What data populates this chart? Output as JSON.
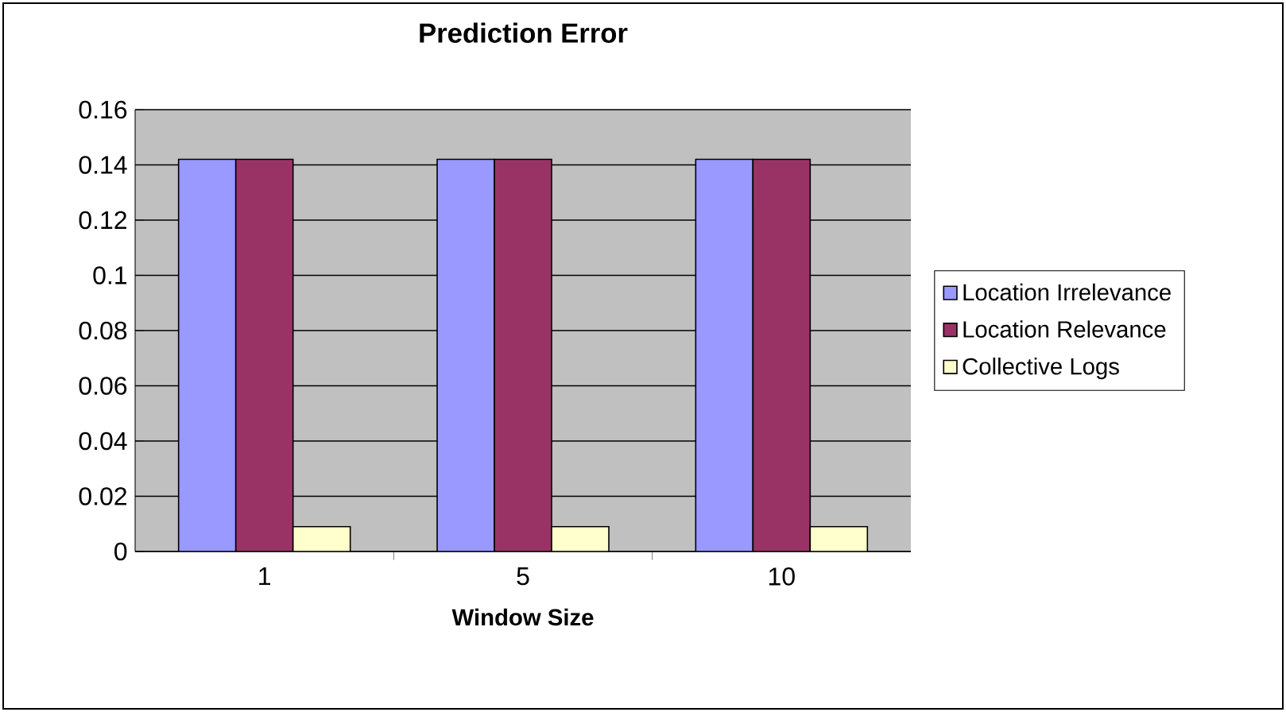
{
  "chart_data": {
    "type": "bar",
    "title": "Prediction Error",
    "xlabel": "Window Size",
    "categories": [
      "1",
      "5",
      "10"
    ],
    "series": [
      {
        "name": "Location Irrelevance",
        "color": "#9999ff",
        "values": [
          0.142,
          0.142,
          0.142
        ]
      },
      {
        "name": "Location Relevance",
        "color": "#993366",
        "values": [
          0.142,
          0.142,
          0.142
        ]
      },
      {
        "name": "Collective Logs",
        "color": "#ffffcc",
        "values": [
          0.009,
          0.009,
          0.009
        ]
      }
    ],
    "ylim": [
      0,
      0.16
    ],
    "yticks": [
      0,
      0.02,
      0.04,
      0.06,
      0.08,
      0.1,
      0.12,
      0.14,
      0.16
    ],
    "grid": "y",
    "legend": "right"
  }
}
